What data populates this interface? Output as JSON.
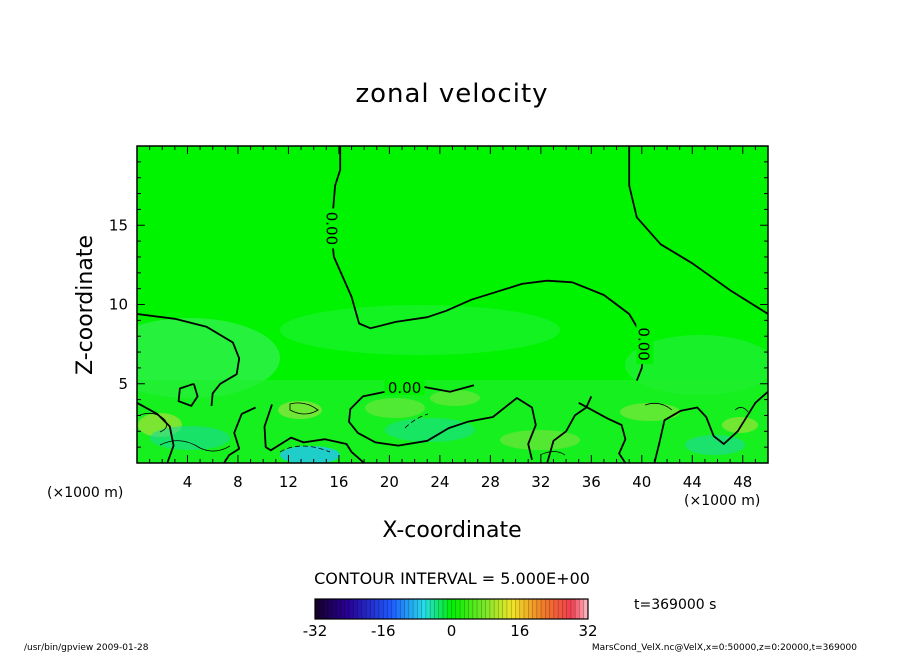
{
  "chart_data": {
    "type": "heatmap",
    "title": "zonal velocity",
    "xlabel": "X-coordinate",
    "ylabel": "Z-coordinate",
    "x_unit": "(×1000 m)",
    "xlim": [
      0,
      50
    ],
    "ylim": [
      0,
      20
    ],
    "x_ticks": [
      4,
      8,
      12,
      16,
      20,
      24,
      28,
      32,
      36,
      40,
      44,
      48
    ],
    "y_ticks": [
      5,
      10,
      15
    ],
    "contour_interval_text": "CONTOUR INTERVAL = 5.000E+00",
    "contour_labels": [
      {
        "text": "0.00",
        "x": 15.5,
        "y": 14.8,
        "vertical": true
      },
      {
        "text": "0.00",
        "x": 40.2,
        "y": 7.5,
        "vertical": true
      },
      {
        "text": "0.00",
        "x": 21.2,
        "y": 4.8,
        "vertical": false
      }
    ],
    "zero_contours": [
      [
        [
          16.1,
          20
        ],
        [
          16.1,
          18.5
        ],
        [
          15.7,
          17.5
        ],
        [
          15.4,
          14.6
        ],
        [
          15.6,
          13.0
        ],
        [
          17.0,
          10.5
        ],
        [
          17.6,
          8.8
        ],
        [
          18.5,
          8.5
        ],
        [
          20.5,
          8.9
        ],
        [
          23.0,
          9.2
        ],
        [
          24.5,
          9.6
        ],
        [
          26.5,
          10.3
        ],
        [
          28.5,
          10.8
        ],
        [
          30.5,
          11.3
        ],
        [
          32.5,
          11.5
        ],
        [
          34.5,
          11.4
        ],
        [
          37.0,
          10.6
        ],
        [
          39.0,
          9.4
        ],
        [
          40.2,
          7.8
        ],
        [
          40.0,
          6.0
        ],
        [
          39.6,
          5.2
        ]
      ],
      [
        [
          39.0,
          20
        ],
        [
          39.0,
          17.5
        ],
        [
          39.6,
          15.5
        ],
        [
          41.5,
          13.8
        ],
        [
          44.0,
          12.6
        ],
        [
          47.0,
          10.9
        ],
        [
          50,
          9.4
        ]
      ],
      [
        [
          0,
          9.4
        ],
        [
          3.0,
          9.1
        ],
        [
          5.5,
          8.6
        ],
        [
          7.6,
          7.6
        ],
        [
          8.1,
          6.6
        ],
        [
          7.9,
          5.6
        ],
        [
          6.6,
          5.0
        ],
        [
          6.0,
          4.4
        ],
        [
          5.9,
          3.6
        ]
      ],
      [
        [
          21.5,
          4.8
        ],
        [
          20.3,
          4.6
        ],
        [
          17.9,
          4.2
        ],
        [
          16.9,
          3.4
        ],
        [
          16.8,
          2.6
        ],
        [
          17.5,
          1.9
        ],
        [
          18.9,
          1.3
        ],
        [
          20.7,
          1.1
        ],
        [
          23.0,
          1.4
        ],
        [
          24.7,
          2.2
        ],
        [
          26.2,
          2.6
        ],
        [
          28.2,
          2.9
        ],
        [
          29.3,
          3.6
        ],
        [
          30.1,
          4.1
        ],
        [
          31.3,
          3.5
        ],
        [
          31.6,
          2.4
        ],
        [
          31.0,
          1.2
        ],
        [
          31.3,
          0.2
        ]
      ],
      [
        [
          22.7,
          4.8
        ],
        [
          24.8,
          4.5
        ],
        [
          26.7,
          4.9
        ]
      ],
      [
        [
          0,
          3.8
        ],
        [
          1.6,
          3.1
        ],
        [
          2.6,
          2.3
        ],
        [
          2.9,
          1.1
        ],
        [
          2.4,
          0
        ]
      ],
      [
        [
          4.5,
          5.0
        ],
        [
          3.4,
          4.7
        ],
        [
          3.3,
          3.9
        ],
        [
          4.3,
          3.6
        ],
        [
          4.8,
          4.2
        ],
        [
          4.5,
          5.0
        ]
      ],
      [
        [
          9.4,
          3.5
        ],
        [
          8.3,
          3.1
        ],
        [
          7.7,
          1.9
        ],
        [
          8.1,
          0.9
        ],
        [
          7.3,
          0.5
        ],
        [
          6.9,
          0
        ]
      ],
      [
        [
          10.7,
          3.7
        ],
        [
          10.1,
          2.3
        ],
        [
          10.2,
          1.0
        ],
        [
          10.6,
          0.8
        ],
        [
          11.4,
          1.2
        ],
        [
          12.2,
          1.6
        ],
        [
          13.2,
          1.3
        ],
        [
          14.9,
          1.5
        ],
        [
          16.6,
          1.2
        ],
        [
          17.0,
          0.7
        ],
        [
          18.0,
          0
        ]
      ],
      [
        [
          36.0,
          4.2
        ],
        [
          35.6,
          3.5
        ],
        [
          34.7,
          3.0
        ],
        [
          34.0,
          2.0
        ],
        [
          33.0,
          1.4
        ],
        [
          32.5,
          0
        ]
      ],
      [
        [
          35.0,
          3.8
        ],
        [
          37.3,
          2.8
        ],
        [
          38.4,
          2.4
        ],
        [
          38.7,
          1.5
        ],
        [
          38.2,
          0.6
        ],
        [
          38.7,
          0
        ]
      ],
      [
        [
          41.0,
          0
        ],
        [
          41.4,
          1.3
        ],
        [
          41.8,
          2.7
        ],
        [
          43.1,
          3.3
        ],
        [
          44.4,
          3.5
        ],
        [
          45.1,
          2.9
        ],
        [
          45.7,
          1.7
        ],
        [
          46.5,
          1.2
        ],
        [
          47.6,
          2.0
        ],
        [
          49.0,
          3.8
        ],
        [
          50,
          4.5
        ]
      ]
    ],
    "fill_scale": {
      "min": -32,
      "max": 32,
      "tick_labels": [
        "-32",
        "-16",
        "0",
        "16",
        "32"
      ],
      "tick_values": [
        -32,
        -16,
        0,
        16,
        32
      ]
    },
    "background_value": 0,
    "time_label": "t=369000 s",
    "footer_left": "/usr/bin/gpview  2009-01-28",
    "footer_right": "MarsCond_VelX.nc@VelX,x=0:50000,z=0:20000,t=369000"
  }
}
